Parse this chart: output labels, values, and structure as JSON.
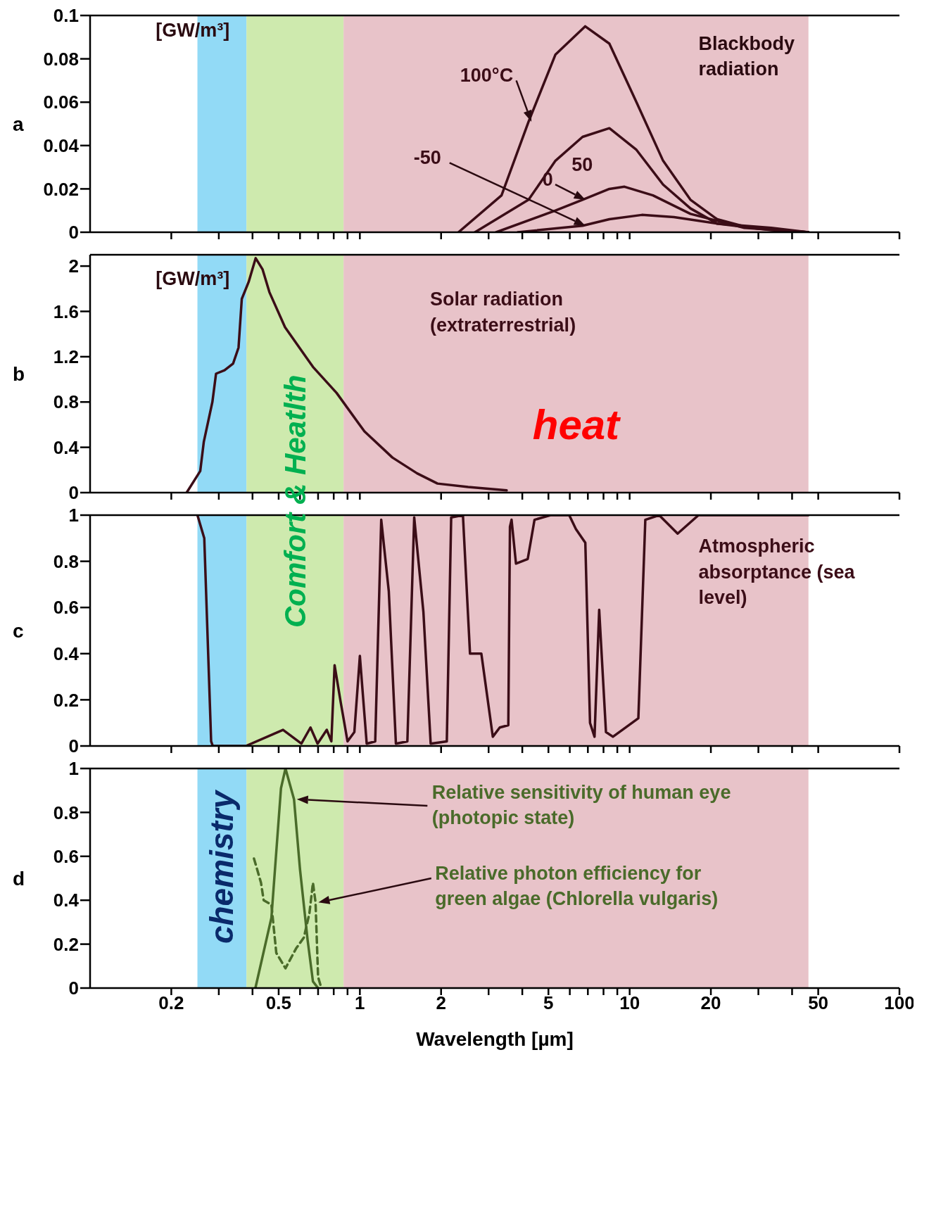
{
  "chart_data": [
    {
      "type": "line",
      "log": "x",
      "ylabel": "a",
      "xlim": [
        0.1,
        100
      ],
      "xticks": [
        0.2,
        {
          "value": 0.3,
          "label": null
        },
        {
          "value": 0.4,
          "label": null
        },
        0.5,
        {
          "value": 0.6,
          "label": null
        },
        {
          "value": 0.7,
          "label": null
        },
        {
          "value": 0.8,
          "label": null
        },
        {
          "value": 0.9,
          "label": null
        },
        1,
        2,
        {
          "value": 3,
          "label": null
        },
        {
          "value": 4,
          "label": null
        },
        5,
        {
          "value": 6,
          "label": null
        },
        {
          "value": 7,
          "label": null
        },
        {
          "value": 8,
          "label": null
        },
        {
          "value": 9,
          "label": null
        },
        10,
        20,
        {
          "value": 30,
          "label": null
        },
        {
          "value": 40,
          "label": null
        },
        50,
        100
      ],
      "ylim": [
        0,
        0.1
      ],
      "yticks": [
        0,
        0.02,
        0.04,
        0.06,
        0.08,
        0.1
      ],
      "tick_labels": "y",
      "line_style": "solid",
      "annotations": [
        "[GW/m³]",
        "Blackbody radiation"
      ],
      "bands": [
        {
          "axis": "x",
          "from": 0.25,
          "to": 0.38,
          "color": "#7fd3f5"
        },
        {
          "axis": "x",
          "from": 0.38,
          "to": 0.87,
          "color": "#c6e6a0"
        },
        {
          "axis": "x",
          "from": 0.87,
          "to": 46,
          "color": "#e4b8c0"
        }
      ],
      "series": [
        {
          "name": "100°C",
          "color": "#3b0d17",
          "x": [
            2.32,
            3.35,
            4.22,
            5.31,
            6.84,
            8.41,
            10.6,
            13.3,
            16.8,
            21.1,
            27.9,
            46
          ],
          "values": [
            0,
            0.017,
            0.051,
            0.082,
            0.095,
            0.087,
            0.06,
            0.033,
            0.015,
            0.006,
            0.002,
            0
          ]
        },
        {
          "name": "50",
          "color": "#3b0d17",
          "x": [
            2.67,
            4.22,
            5.31,
            6.69,
            8.41,
            10.6,
            13.3,
            16.8,
            21.1,
            33.5,
            46
          ],
          "values": [
            0,
            0.015,
            0.033,
            0.044,
            0.048,
            0.038,
            0.022,
            0.011,
            0.004,
            0.001,
            0
          ]
        },
        {
          "name": "0",
          "color": "#3b0d17",
          "x": [
            3.2,
            5.31,
            6.69,
            8.41,
            9.57,
            12.2,
            16.8,
            26.6,
            46
          ],
          "values": [
            0,
            0.01,
            0.015,
            0.02,
            0.021,
            0.017,
            0.0085,
            0.002,
            0
          ]
        },
        {
          "name": "-50",
          "color": "#3b0d17",
          "x": [
            3.85,
            6.69,
            8.41,
            11.1,
            14.6,
            21.1,
            33.5,
            46
          ],
          "values": [
            0,
            0.003,
            0.006,
            0.008,
            0.007,
            0.004,
            0.002,
            0
          ]
        }
      ]
    },
    {
      "type": "line",
      "log": "x",
      "ylabel": "b",
      "xlim": [
        0.1,
        100
      ],
      "xticks": [
        0.2,
        {
          "value": 0.3,
          "label": null
        },
        {
          "value": 0.4,
          "label": null
        },
        0.5,
        {
          "value": 0.6,
          "label": null
        },
        {
          "value": 0.7,
          "label": null
        },
        {
          "value": 0.8,
          "label": null
        },
        {
          "value": 0.9,
          "label": null
        },
        1,
        2,
        {
          "value": 3,
          "label": null
        },
        {
          "value": 4,
          "label": null
        },
        5,
        {
          "value": 6,
          "label": null
        },
        {
          "value": 7,
          "label": null
        },
        {
          "value": 8,
          "label": null
        },
        {
          "value": 9,
          "label": null
        },
        10,
        20,
        {
          "value": 30,
          "label": null
        },
        {
          "value": 40,
          "label": null
        },
        50,
        100
      ],
      "ylim": [
        0,
        2.1
      ],
      "yticks": [
        0,
        0.4,
        0.8,
        1.2,
        1.6,
        2
      ],
      "tick_labels": "y",
      "line_style": "solid",
      "annotations": [
        "[GW/m³]"
      ],
      "bands": [
        {
          "axis": "x",
          "from": 0.25,
          "to": 0.38,
          "color": "#7fd3f5"
        },
        {
          "axis": "x",
          "from": 0.38,
          "to": 0.87,
          "color": "#c6e6a0"
        },
        {
          "axis": "x",
          "from": 0.87,
          "to": 46,
          "color": "#e4b8c0",
          "label": "heat"
        }
      ],
      "series": [
        {
          "name": "Solar radiation (extraterrestrial)",
          "color": "#3b0d17",
          "x": [
            0.228,
            0.256,
            0.264,
            0.284,
            0.293,
            0.315,
            0.339,
            0.355,
            0.365,
            0.387,
            0.411,
            0.436,
            0.462,
            0.528,
            0.67,
            0.82,
            1.04,
            1.32,
            1.63,
            1.94,
            2.52,
            3.5
          ],
          "values": [
            0,
            0.19,
            0.45,
            0.8,
            1.05,
            1.08,
            1.14,
            1.28,
            1.71,
            1.86,
            2.07,
            1.97,
            1.77,
            1.46,
            1.11,
            0.88,
            0.54,
            0.31,
            0.17,
            0.08,
            0.05,
            0.02
          ]
        }
      ]
    },
    {
      "type": "line",
      "log": "x",
      "ylabel": "c",
      "xlim": [
        0.1,
        100
      ],
      "xticks": [
        0.2,
        {
          "value": 0.3,
          "label": null
        },
        {
          "value": 0.4,
          "label": null
        },
        0.5,
        {
          "value": 0.6,
          "label": null
        },
        {
          "value": 0.7,
          "label": null
        },
        {
          "value": 0.8,
          "label": null
        },
        {
          "value": 0.9,
          "label": null
        },
        1,
        2,
        {
          "value": 3,
          "label": null
        },
        {
          "value": 4,
          "label": null
        },
        5,
        {
          "value": 6,
          "label": null
        },
        {
          "value": 7,
          "label": null
        },
        {
          "value": 8,
          "label": null
        },
        {
          "value": 9,
          "label": null
        },
        10,
        20,
        {
          "value": 30,
          "label": null
        },
        {
          "value": 40,
          "label": null
        },
        50,
        100
      ],
      "ylim": [
        0,
        1
      ],
      "yticks": [
        0,
        0.2,
        0.4,
        0.6,
        0.8,
        1
      ],
      "tick_labels": "y",
      "line_style": "solid",
      "bands": [
        {
          "axis": "x",
          "from": 0.25,
          "to": 0.38,
          "color": "#7fd3f5"
        },
        {
          "axis": "x",
          "from": 0.38,
          "to": 0.87,
          "color": "#c6e6a0",
          "label": "Comfort & Heatlth"
        },
        {
          "axis": "x",
          "from": 0.87,
          "to": 46,
          "color": "#e4b8c0"
        }
      ],
      "series": [
        {
          "name": "Atmospheric absorptance (sea level)",
          "color": "#3b0d17",
          "x": [
            0.25,
            0.265,
            0.281,
            0.285,
            0.378,
            0.519,
            0.607,
            0.656,
            0.697,
            0.754,
            0.784,
            0.806,
            0.849,
            0.9,
            0.954,
            1.0,
            1.06,
            1.14,
            1.2,
            1.28,
            1.36,
            1.5,
            1.59,
            1.72,
            1.83,
            2.1,
            2.18,
            2.41,
            2.56,
            2.82,
            3.11,
            3.3,
            3.55,
            3.6,
            3.65,
            3.79,
            4.19,
            4.44,
            5.09,
            5.97,
            6.32,
            6.85,
            7.13,
            7.41,
            7.71,
            8.17,
            8.67,
            10.77,
            11.43,
            12.86,
            15.06,
            18,
            38.8,
            46
          ],
          "values": [
            1,
            0.9,
            0.02,
            0,
            0,
            0.07,
            0.01,
            0.08,
            0.01,
            0.07,
            0.02,
            0.35,
            0.19,
            0.02,
            0.06,
            0.39,
            0.01,
            0.02,
            0.98,
            0.67,
            0.01,
            0.02,
            0.99,
            0.58,
            0.01,
            0.02,
            0.99,
            1,
            0.4,
            0.4,
            0.04,
            0.08,
            0.09,
            0.95,
            0.98,
            0.79,
            0.81,
            0.98,
            1,
            1,
            0.94,
            0.88,
            0.1,
            0.04,
            0.59,
            0.06,
            0.04,
            0.12,
            0.98,
            1,
            0.92,
            1,
            1,
            1
          ]
        }
      ]
    },
    {
      "type": "line",
      "log": "x",
      "ylabel": "d",
      "xlabel": "Wavelength [µm]",
      "xlim": [
        0.1,
        100
      ],
      "ylim": [
        0,
        1
      ],
      "yticks": [
        0,
        0.2,
        0.4,
        0.6,
        0.8,
        1
      ],
      "xticks": [
        0.2,
        {
          "value": 0.3,
          "label": null
        },
        {
          "value": 0.4,
          "label": null
        },
        0.5,
        {
          "value": 0.6,
          "label": null
        },
        {
          "value": 0.7,
          "label": null
        },
        {
          "value": 0.8,
          "label": null
        },
        {
          "value": 0.9,
          "label": null
        },
        1,
        2,
        {
          "value": 3,
          "label": null
        },
        {
          "value": 4,
          "label": null
        },
        5,
        {
          "value": 6,
          "label": null
        },
        {
          "value": 7,
          "label": null
        },
        {
          "value": 8,
          "label": null
        },
        {
          "value": 9,
          "label": null
        },
        10,
        20,
        {
          "value": 30,
          "label": null
        },
        {
          "value": 40,
          "label": null
        },
        50,
        100
      ],
      "bands": [
        {
          "axis": "x",
          "from": 0.25,
          "to": 0.38,
          "color": "#7fd3f5",
          "label": "chemistry"
        },
        {
          "axis": "x",
          "from": 0.38,
          "to": 0.87,
          "color": "#c6e6a0"
        },
        {
          "axis": "x",
          "from": 0.87,
          "to": 46,
          "color": "#e4b8c0"
        }
      ],
      "series": [
        {
          "name": "Relative sensitivity of human eye (photopic state)",
          "color": "#4a6b2a",
          "line_style": "solid",
          "x": [
            0.41,
            0.47,
            0.51,
            0.53,
            0.57,
            0.6,
            0.64,
            0.67,
            0.7
          ],
          "values": [
            0,
            0.32,
            0.91,
            1,
            0.86,
            0.54,
            0.22,
            0.03,
            0
          ]
        },
        {
          "name": "Relative photon efficiency for green algae (Chlorella vulgaris)",
          "color": "#4a6b2a",
          "line_style": "dashed",
          "x": [
            0.405,
            0.43,
            0.44,
            0.47,
            0.49,
            0.53,
            0.58,
            0.62,
            0.65,
            0.67,
            0.685,
            0.7,
            0.72
          ],
          "values": [
            0.59,
            0.48,
            0.4,
            0.38,
            0.16,
            0.09,
            0.18,
            0.23,
            0.34,
            0.48,
            0.39,
            0.05,
            0
          ]
        }
      ]
    }
  ]
}
